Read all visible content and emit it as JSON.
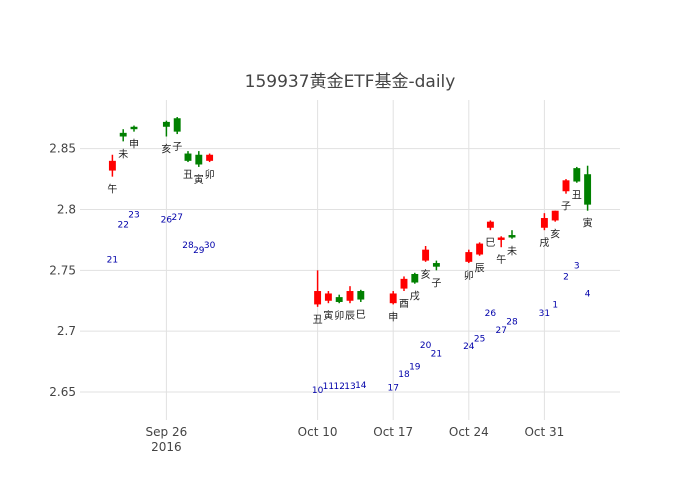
{
  "chart_data": {
    "type": "candlestick",
    "title": "159937黄金ETF基金-daily",
    "xlabel": "",
    "ylabel": "",
    "ylim": [
      2.627,
      2.89
    ],
    "xlim": [
      "2016-09-18",
      "2016-11-07"
    ],
    "yticks": [
      2.65,
      2.7,
      2.75,
      2.8,
      2.85
    ],
    "ytick_labels": [
      "2.65",
      "2.7",
      "2.75",
      "2.8",
      "2.85"
    ],
    "xticks": [
      {
        "date": "2016-09-26",
        "label": "Sep 26",
        "sublabel": "2016"
      },
      {
        "date": "2016-10-10",
        "label": "Oct 10",
        "sublabel": ""
      },
      {
        "date": "2016-10-17",
        "label": "Oct 17",
        "sublabel": ""
      },
      {
        "date": "2016-10-24",
        "label": "Oct 24",
        "sublabel": ""
      },
      {
        "date": "2016-10-31",
        "label": "Oct 31",
        "sublabel": ""
      }
    ],
    "grid": true,
    "legend": false,
    "up_color": "#ff0000",
    "down_color": "#008000",
    "candles": [
      {
        "date": "2016-09-21",
        "open": 2.832,
        "high": 2.845,
        "low": 2.827,
        "close": 2.84,
        "day": "21",
        "zhi": "午"
      },
      {
        "date": "2016-09-22",
        "open": 2.863,
        "high": 2.866,
        "low": 2.856,
        "close": 2.86,
        "day": "22",
        "zhi": "未"
      },
      {
        "date": "2016-09-23",
        "open": 2.868,
        "high": 2.869,
        "low": 2.864,
        "close": 2.866,
        "day": "23",
        "zhi": "申"
      },
      {
        "date": "2016-09-26",
        "open": 2.872,
        "high": 2.873,
        "low": 2.86,
        "close": 2.868,
        "day": "26",
        "zhi": "亥"
      },
      {
        "date": "2016-09-27",
        "open": 2.875,
        "high": 2.876,
        "low": 2.862,
        "close": 2.864,
        "day": "27",
        "zhi": "子"
      },
      {
        "date": "2016-09-28",
        "open": 2.846,
        "high": 2.848,
        "low": 2.839,
        "close": 2.84,
        "day": "28",
        "zhi": "丑"
      },
      {
        "date": "2016-09-29",
        "open": 2.845,
        "high": 2.848,
        "low": 2.835,
        "close": 2.837,
        "day": "29",
        "zhi": "寅"
      },
      {
        "date": "2016-09-30",
        "open": 2.84,
        "high": 2.846,
        "low": 2.839,
        "close": 2.845,
        "day": "30",
        "zhi": "卯"
      },
      {
        "date": "2016-10-10",
        "open": 2.722,
        "high": 2.75,
        "low": 2.72,
        "close": 2.733,
        "day": "10",
        "zhi": "丑"
      },
      {
        "date": "2016-10-11",
        "open": 2.725,
        "high": 2.733,
        "low": 2.723,
        "close": 2.731,
        "day": "11",
        "zhi": "寅"
      },
      {
        "date": "2016-10-12",
        "open": 2.728,
        "high": 2.73,
        "low": 2.723,
        "close": 2.724,
        "day": "12",
        "zhi": "卯"
      },
      {
        "date": "2016-10-13",
        "open": 2.725,
        "high": 2.737,
        "low": 2.723,
        "close": 2.733,
        "day": "13",
        "zhi": "辰"
      },
      {
        "date": "2016-10-14",
        "open": 2.733,
        "high": 2.734,
        "low": 2.724,
        "close": 2.726,
        "day": "14",
        "zhi": "巳"
      },
      {
        "date": "2016-10-17",
        "open": 2.723,
        "high": 2.733,
        "low": 2.722,
        "close": 2.731,
        "day": "17",
        "zhi": "申"
      },
      {
        "date": "2016-10-18",
        "open": 2.735,
        "high": 2.745,
        "low": 2.733,
        "close": 2.743,
        "day": "18",
        "zhi": "酉"
      },
      {
        "date": "2016-10-19",
        "open": 2.747,
        "high": 2.748,
        "low": 2.739,
        "close": 2.74,
        "day": "19",
        "zhi": "戌"
      },
      {
        "date": "2016-10-20",
        "open": 2.758,
        "high": 2.77,
        "low": 2.757,
        "close": 2.767,
        "day": "20",
        "zhi": "亥"
      },
      {
        "date": "2016-10-21",
        "open": 2.756,
        "high": 2.758,
        "low": 2.75,
        "close": 2.753,
        "day": "21",
        "zhi": "子"
      },
      {
        "date": "2016-10-24",
        "open": 2.757,
        "high": 2.767,
        "low": 2.756,
        "close": 2.765,
        "day": "24",
        "zhi": "卯"
      },
      {
        "date": "2016-10-25",
        "open": 2.763,
        "high": 2.773,
        "low": 2.762,
        "close": 2.772,
        "day": "25",
        "zhi": "辰"
      },
      {
        "date": "2016-10-26",
        "open": 2.785,
        "high": 2.791,
        "low": 2.783,
        "close": 2.79,
        "day": "26",
        "zhi": "巳"
      },
      {
        "date": "2016-10-27",
        "open": 2.775,
        "high": 2.778,
        "low": 2.769,
        "close": 2.777,
        "day": "27",
        "zhi": "午"
      },
      {
        "date": "2016-10-28",
        "open": 2.779,
        "high": 2.783,
        "low": 2.776,
        "close": 2.777,
        "day": "28",
        "zhi": "未"
      },
      {
        "date": "2016-10-31",
        "open": 2.785,
        "high": 2.797,
        "low": 2.783,
        "close": 2.793,
        "day": "31",
        "zhi": "戌"
      },
      {
        "date": "2016-11-01",
        "open": 2.791,
        "high": 2.799,
        "low": 2.79,
        "close": 2.799,
        "day": "1",
        "zhi": "亥"
      },
      {
        "date": "2016-11-02",
        "open": 2.815,
        "high": 2.825,
        "low": 2.813,
        "close": 2.824,
        "day": "2",
        "zhi": "子"
      },
      {
        "date": "2016-11-03",
        "open": 2.834,
        "high": 2.835,
        "low": 2.822,
        "close": 2.823,
        "day": "3",
        "zhi": "丑"
      },
      {
        "date": "2016-11-04",
        "open": 2.829,
        "high": 2.836,
        "low": 2.799,
        "close": 2.804,
        "day": "4",
        "zhi": "寅"
      }
    ]
  }
}
